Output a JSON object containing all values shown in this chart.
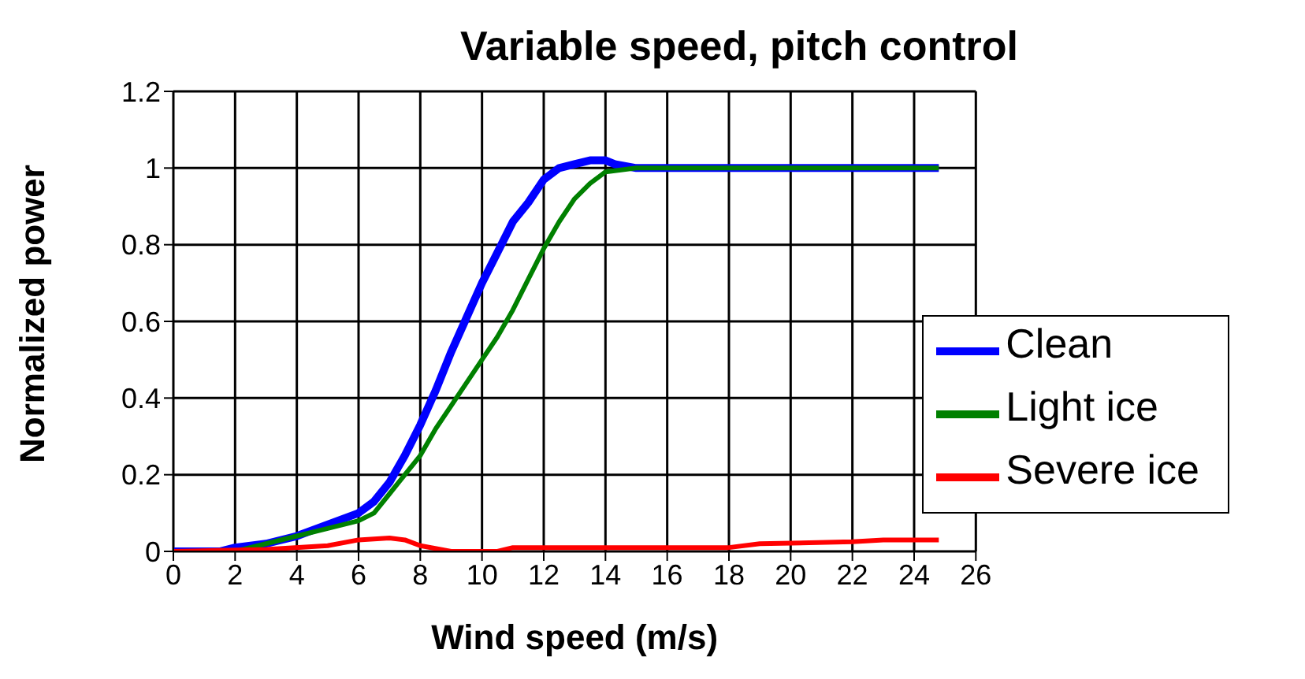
{
  "chart_data": {
    "type": "line",
    "title": "Variable speed, pitch control",
    "xlabel": "Wind speed (m/s)",
    "ylabel": "Normalized  power",
    "xlim": [
      0,
      26
    ],
    "xticks": [
      0,
      2,
      4,
      6,
      8,
      10,
      12,
      14,
      16,
      18,
      20,
      22,
      24,
      26
    ],
    "ylim": [
      0,
      1.2
    ],
    "yticks": [
      0,
      0.2,
      0.4,
      0.6,
      0.8,
      1,
      1.2
    ],
    "grid": true,
    "legend": "right",
    "marker": "none",
    "line_style": "solid",
    "series": [
      {
        "name": "Clean",
        "color": "#0000ff",
        "x": [
          0,
          1.5,
          2,
          3,
          4,
          5,
          6,
          6.5,
          7,
          7.5,
          8,
          8.5,
          9,
          9.5,
          10,
          10.5,
          11,
          11.5,
          12,
          12.5,
          13,
          13.5,
          14,
          14.3,
          15,
          24.8
        ],
        "values": [
          0,
          0,
          0.01,
          0.02,
          0.04,
          0.07,
          0.1,
          0.13,
          0.18,
          0.25,
          0.33,
          0.42,
          0.52,
          0.61,
          0.7,
          0.78,
          0.86,
          0.91,
          0.97,
          1,
          1.01,
          1.02,
          1.02,
          1.01,
          1,
          1
        ]
      },
      {
        "name": "Light ice",
        "color": "#008000",
        "x": [
          0,
          2,
          3,
          4,
          5,
          6,
          6.5,
          7,
          7.5,
          8,
          8.5,
          9,
          9.5,
          10,
          10.5,
          11,
          11.5,
          12,
          12.5,
          13,
          13.5,
          14,
          15,
          24.8
        ],
        "values": [
          0,
          0,
          0.02,
          0.04,
          0.06,
          0.08,
          0.1,
          0.15,
          0.2,
          0.25,
          0.32,
          0.38,
          0.44,
          0.5,
          0.56,
          0.63,
          0.71,
          0.79,
          0.86,
          0.92,
          0.96,
          0.99,
          1,
          1
        ]
      },
      {
        "name": "Severe ice",
        "color": "#ff0000",
        "x": [
          0,
          3,
          5,
          6,
          7,
          7.5,
          8,
          9,
          10.5,
          11,
          15,
          18,
          19,
          22,
          23,
          24.8
        ],
        "values": [
          0,
          0.005,
          0.015,
          0.03,
          0.035,
          0.03,
          0.015,
          0,
          0,
          0.01,
          0.01,
          0.01,
          0.02,
          0.025,
          0.03,
          0.03
        ]
      }
    ]
  }
}
